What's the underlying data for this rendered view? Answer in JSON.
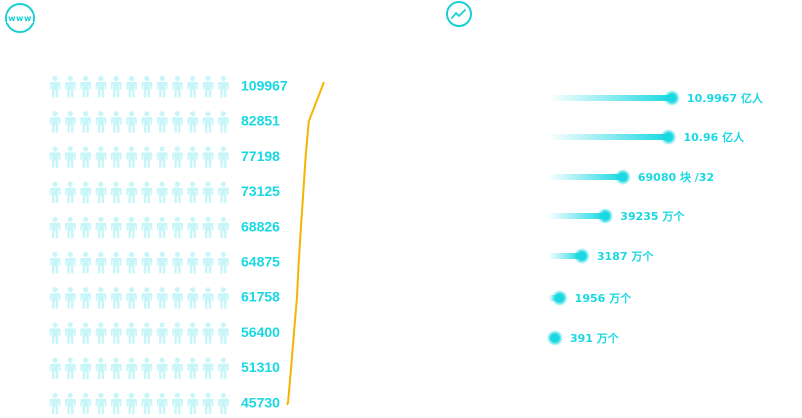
{
  "icons": {
    "left_header": "www-globe-icon",
    "right_header": "trend-line-icon",
    "left_header_text": "www"
  },
  "colors": {
    "accent": "#19d8e2",
    "icon_full": "#2ed9e0",
    "icon_light": "#c8f6f8",
    "trend_line": "#f4b400"
  },
  "chart_data": [
    {
      "type": "bar",
      "subtype": "pictogram-with-trend-line",
      "icons_per_row": 12,
      "icon_unit": 10000,
      "values": [
        109967,
        82851,
        77198,
        73125,
        68826,
        64875,
        61758,
        56400,
        51310,
        45730
      ],
      "value_labels": [
        "109967",
        "82851",
        "77198",
        "73125",
        "68826",
        "64875",
        "61758",
        "56400",
        "51310",
        "45730"
      ]
    },
    {
      "type": "bar",
      "subtype": "horizontal-gradient-bar",
      "values": [
        10.9967,
        10.96,
        69080,
        39235,
        3187,
        1956,
        391
      ],
      "labels": [
        "10.9967 亿人",
        "10.96 亿人",
        "69080 块 /32",
        "39235 万个",
        "3187 万个",
        "1956 万个",
        "391 万个"
      ],
      "relative_lengths": [
        1.0,
        0.97,
        0.58,
        0.43,
        0.23,
        0.04,
        0.0
      ]
    }
  ]
}
